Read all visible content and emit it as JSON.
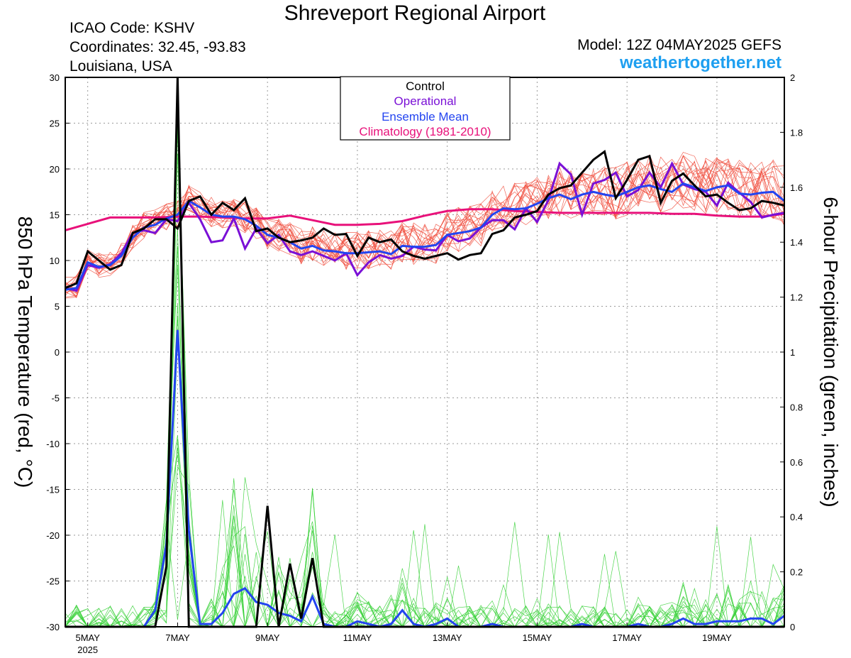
{
  "header": {
    "title": "Shreveport Regional Airport",
    "icao": "ICAO Code: KSHV",
    "coordinates": "Coordinates: 32.45, -93.83",
    "location": "Louisiana, USA",
    "model": "Model: 12Z 04MAY2025 GEFS",
    "site": "weathertogether.net"
  },
  "colors": {
    "members_temp": "#f04a3a",
    "members_precip": "#3ad13a",
    "control": "#000000",
    "operational": "#7a10d6",
    "mean": "#2344f0",
    "climatology": "#e8117a",
    "site": "#1e9ff0"
  },
  "chart_data": {
    "type": "line",
    "x_unit": "day of May 2025 (fractional, UTC)",
    "xlim": [
      4.5,
      20.5
    ],
    "x_ticks": [
      {
        "x": 5,
        "label": "5MAY",
        "sublabel": "2025"
      },
      {
        "x": 7,
        "label": "7MAY"
      },
      {
        "x": 9,
        "label": "9MAY"
      },
      {
        "x": 11,
        "label": "11MAY"
      },
      {
        "x": 13,
        "label": "13MAY"
      },
      {
        "x": 15,
        "label": "15MAY"
      },
      {
        "x": 17,
        "label": "17MAY"
      },
      {
        "x": 19,
        "label": "19MAY"
      }
    ],
    "ylabel_left": "850 hPa Temperature (red, °C)",
    "ylabel_right": "6-hour Precipitation (green, inches)",
    "ylim_left": [
      -30,
      30
    ],
    "ylim_right": [
      0,
      2
    ],
    "y_ticks_left": [
      "30",
      "25",
      "20",
      "15",
      "10",
      "5",
      "0",
      "-5",
      "-10",
      "-15",
      "-20",
      "-25",
      "-30"
    ],
    "y_ticks_right": [
      "2",
      "1.8",
      "1.6",
      "1.4",
      "1.2",
      "1",
      "0.8",
      "0.6",
      "0.4",
      "0.2",
      "0"
    ],
    "grid": true,
    "legend": {
      "placement": "top-center",
      "entries": [
        {
          "label": "Control",
          "color": "#000000"
        },
        {
          "label": "Operational",
          "color": "#7a10d6"
        },
        {
          "label": "Ensemble Mean",
          "color": "#2344f0"
        },
        {
          "label": "Climatology (1981-2010)",
          "color": "#e8117a"
        }
      ]
    },
    "temperature": {
      "control": {
        "x": [
          4.5,
          4.75,
          5.0,
          5.25,
          5.5,
          5.75,
          6.0,
          6.25,
          6.5,
          6.75,
          7.0,
          7.25,
          7.5,
          7.75,
          8.0,
          8.25,
          8.5,
          8.75,
          9.0,
          9.25,
          9.5,
          9.75,
          10.0,
          10.25,
          10.5,
          10.75,
          11.0,
          11.25,
          11.5,
          11.75,
          12.0,
          12.25,
          12.5,
          12.75,
          13.0,
          13.25,
          13.5,
          13.75,
          14.0,
          14.25,
          14.5,
          14.75,
          15.0,
          15.25,
          15.5,
          15.75,
          16.0,
          16.25,
          16.5,
          16.75,
          17.0,
          17.25,
          17.5,
          17.75,
          18.0,
          18.25,
          18.5,
          18.75,
          19.0,
          19.25,
          19.5,
          19.75,
          20.0,
          20.25,
          20.5
        ],
        "y": [
          7.0,
          7.5,
          11.0,
          10.0,
          9.0,
          9.5,
          13.0,
          13.5,
          14.5,
          14.5,
          13.5,
          16.5,
          17.0,
          15.0,
          16.3,
          15.5,
          16.8,
          13.2,
          13.5,
          12.5,
          12.0,
          12.2,
          12.5,
          13.5,
          12.8,
          12.9,
          10.5,
          12.5,
          12.0,
          12.3,
          11.0,
          10.5,
          10.2,
          10.5,
          10.8,
          10.1,
          10.6,
          10.8,
          12.9,
          13.3,
          14.7,
          15.0,
          15.4,
          17.2,
          17.9,
          18.2,
          19.6,
          21.0,
          21.9,
          16.8,
          18.8,
          21.0,
          21.4,
          16.3,
          18.7,
          19.5,
          18.2,
          17.0,
          17.2,
          16.3,
          15.5,
          15.7,
          16.5,
          16.3,
          16.0
        ]
      },
      "operational": {
        "x": [
          4.5,
          4.75,
          5.0,
          5.25,
          5.5,
          5.75,
          6.0,
          6.25,
          6.5,
          6.75,
          7.0,
          7.25,
          7.5,
          7.75,
          8.0,
          8.25,
          8.5,
          8.75,
          9.0,
          9.25,
          9.5,
          9.75,
          10.0,
          10.25,
          10.5,
          10.75,
          11.0,
          11.25,
          11.5,
          11.75,
          12.0,
          12.25,
          12.5,
          12.75,
          13.0,
          13.25,
          13.5,
          13.75,
          14.0,
          14.25,
          14.5,
          14.75,
          15.0,
          15.25,
          15.5,
          15.75,
          16.0,
          16.25,
          16.5,
          16.75,
          17.0,
          17.25,
          17.5,
          17.75,
          18.0,
          18.25,
          18.5,
          18.75,
          19.0,
          19.25,
          19.5,
          19.75,
          20.0,
          20.25,
          20.5
        ],
        "y": [
          7.0,
          6.7,
          9.5,
          9.2,
          9.6,
          10.8,
          13.0,
          13.3,
          13.0,
          14.5,
          14.3,
          16.3,
          14.5,
          12.0,
          12.2,
          14.6,
          11.3,
          13.5,
          11.9,
          12.8,
          11.0,
          10.6,
          11.0,
          10.5,
          10.0,
          10.8,
          8.4,
          9.8,
          10.6,
          10.2,
          10.5,
          11.5,
          11.2,
          11.1,
          12.8,
          12.1,
          12.4,
          13.6,
          14.4,
          14.4,
          13.4,
          15.7,
          14.2,
          16.6,
          20.6,
          19.4,
          15.0,
          18.4,
          18.8,
          19.6,
          17.0,
          17.7,
          19.6,
          18.0,
          20.6,
          18.3,
          17.8,
          17.5,
          16.0,
          18.5,
          17.4,
          16.4,
          14.7,
          15.0,
          15.2
        ]
      },
      "mean": {
        "x": [
          4.5,
          4.75,
          5.0,
          5.25,
          5.5,
          5.75,
          6.0,
          6.25,
          6.5,
          6.75,
          7.0,
          7.25,
          7.5,
          7.75,
          8.0,
          8.25,
          8.5,
          8.75,
          9.0,
          9.25,
          9.5,
          9.75,
          10.0,
          10.25,
          10.5,
          10.75,
          11.0,
          11.25,
          11.5,
          11.75,
          12.0,
          12.25,
          12.5,
          12.75,
          13.0,
          13.25,
          13.5,
          13.75,
          14.0,
          14.25,
          14.5,
          14.75,
          15.0,
          15.25,
          15.5,
          15.75,
          16.0,
          16.25,
          16.5,
          16.75,
          17.0,
          17.25,
          17.5,
          17.75,
          18.0,
          18.25,
          18.5,
          18.75,
          19.0,
          19.25,
          19.5,
          19.75,
          20.0,
          20.25,
          20.5
        ],
        "y": [
          6.8,
          7.0,
          9.8,
          9.3,
          9.5,
          10.5,
          12.5,
          13.6,
          13.9,
          14.6,
          15.0,
          16.5,
          15.8,
          15.0,
          14.8,
          14.8,
          14.5,
          13.8,
          12.8,
          12.5,
          12.0,
          11.3,
          11.6,
          11.1,
          11.0,
          10.8,
          10.8,
          10.9,
          11.0,
          10.7,
          11.6,
          11.5,
          11.5,
          11.7,
          12.8,
          13.0,
          13.2,
          13.6,
          15.0,
          15.7,
          15.6,
          15.7,
          16.2,
          16.8,
          17.2,
          16.7,
          17.2,
          17.5,
          17.2,
          17.0,
          17.5,
          18.0,
          18.2,
          17.8,
          17.5,
          18.4,
          18.0,
          17.6,
          18.0,
          18.2,
          17.3,
          17.2,
          17.4,
          17.5,
          16.5
        ]
      },
      "climatology": {
        "x": [
          4.5,
          5.0,
          5.5,
          6.0,
          6.5,
          7.0,
          7.5,
          8.0,
          8.5,
          9.0,
          9.5,
          10.0,
          10.5,
          11.0,
          11.5,
          12.0,
          12.5,
          13.0,
          13.5,
          14.0,
          14.5,
          15.0,
          15.5,
          16.0,
          16.5,
          17.0,
          17.5,
          18.0,
          18.5,
          19.0,
          19.5,
          20.0,
          20.5
        ],
        "y": [
          13.3,
          14.0,
          14.7,
          14.7,
          14.7,
          14.8,
          14.8,
          14.7,
          14.6,
          14.6,
          14.9,
          14.4,
          13.9,
          13.9,
          14.0,
          14.3,
          14.9,
          15.4,
          15.6,
          15.6,
          15.4,
          15.3,
          15.2,
          15.2,
          15.2,
          15.2,
          15.2,
          15.1,
          15.1,
          14.9,
          14.8,
          14.8,
          15.1
        ]
      },
      "members": {
        "count": 20,
        "color": "#f04a3a",
        "spread_around_mean_c": [
          -3,
          4
        ]
      }
    },
    "precipitation": {
      "control": {
        "x": [
          4.5,
          4.75,
          5.0,
          5.25,
          5.5,
          5.75,
          6.0,
          6.25,
          6.5,
          6.75,
          7.0,
          7.25,
          7.5,
          7.75,
          8.0,
          8.25,
          8.5,
          8.75,
          9.0,
          9.25,
          9.5,
          9.75,
          10.0,
          10.25,
          10.5,
          10.75,
          11.0,
          11.25,
          11.5,
          11.75,
          12.0,
          12.25,
          12.5,
          12.75,
          13.0,
          13.25,
          13.5,
          13.75,
          14.0,
          14.25,
          14.5,
          14.75,
          15.0,
          15.25,
          15.5,
          15.75,
          16.0,
          16.25,
          16.5,
          16.75,
          17.0,
          17.25,
          17.5,
          17.75,
          18.0,
          18.25,
          18.5,
          18.75,
          19.0,
          19.25,
          19.5,
          19.75,
          20.0,
          20.25,
          20.5
        ],
        "y": [
          0,
          0,
          0,
          0,
          0,
          0,
          0,
          0,
          0,
          0.22,
          2.05,
          0,
          0,
          0,
          0,
          0,
          0,
          0,
          0.44,
          0,
          0.23,
          0.03,
          0.25,
          0,
          0,
          0,
          0,
          0,
          0,
          0,
          0,
          0,
          0,
          0,
          0,
          0,
          0,
          0,
          0,
          0,
          0,
          0,
          0,
          0,
          0,
          0,
          0,
          0,
          0,
          0,
          0,
          0,
          0,
          0,
          0,
          0,
          0,
          0,
          0,
          0,
          0,
          0,
          0,
          0,
          0
        ]
      },
      "mean": {
        "x": [
          4.5,
          4.75,
          5.0,
          5.25,
          5.5,
          5.75,
          6.0,
          6.25,
          6.5,
          6.75,
          7.0,
          7.25,
          7.5,
          7.75,
          8.0,
          8.25,
          8.5,
          8.75,
          9.0,
          9.25,
          9.5,
          9.75,
          10.0,
          10.25,
          10.5,
          10.75,
          11.0,
          11.25,
          11.5,
          11.75,
          12.0,
          12.25,
          12.5,
          12.75,
          13.0,
          13.25,
          13.5,
          13.75,
          14.0,
          14.25,
          14.5,
          14.75,
          15.0,
          15.25,
          15.5,
          15.75,
          16.0,
          16.25,
          16.5,
          16.75,
          17.0,
          17.25,
          17.5,
          17.75,
          18.0,
          18.25,
          18.5,
          18.75,
          19.0,
          19.25,
          19.5,
          19.75,
          20.0,
          20.25,
          20.5
        ],
        "y": [
          0,
          0,
          0,
          0,
          0,
          0,
          0,
          0,
          0.06,
          0.3,
          1.08,
          0.35,
          0.01,
          0.01,
          0.05,
          0.12,
          0.14,
          0.09,
          0.08,
          0.05,
          0.04,
          0.02,
          0.11,
          0.01,
          0.0,
          0.0,
          0.02,
          0.01,
          0.0,
          0.01,
          0.06,
          0.01,
          0.0,
          0.01,
          0.03,
          0.0,
          0.0,
          0.0,
          0.01,
          0.0,
          0.0,
          0.0,
          0.0,
          0.0,
          0.0,
          0.0,
          0.01,
          0.0,
          0.0,
          0.0,
          0.0,
          0.01,
          0.0,
          0.0,
          0.01,
          0.03,
          0.01,
          0.01,
          0.02,
          0.02,
          0.02,
          0.03,
          0.03,
          0.01,
          0.04
        ]
      },
      "members": {
        "count": 20,
        "color": "#3ad13a",
        "peak_value_in": 2.0,
        "peak_day": 7.0
      }
    }
  }
}
